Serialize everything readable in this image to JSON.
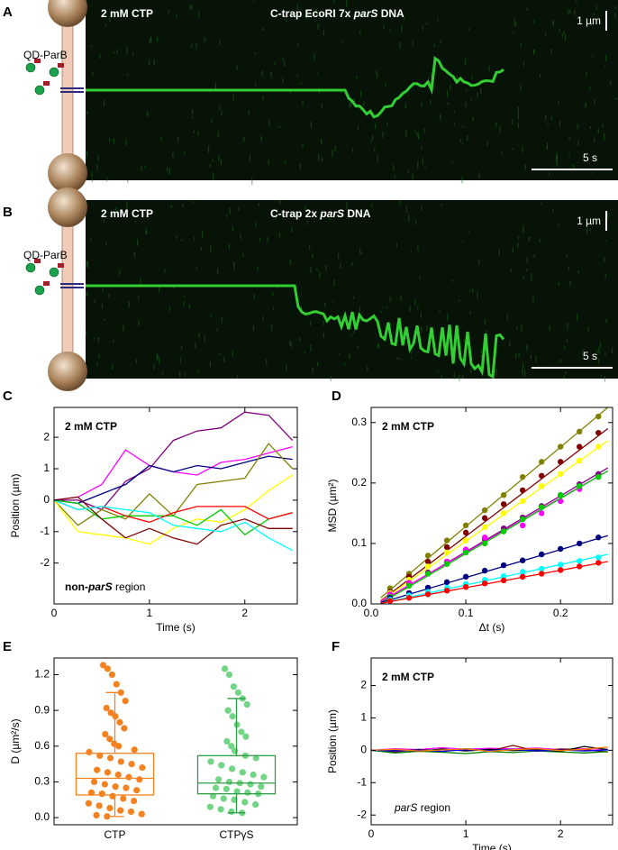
{
  "kymographs": [
    {
      "label": "A",
      "condition": "2 mM CTP",
      "title_parts": [
        {
          "text": "C-trap EcoRI 7x "
        },
        {
          "text": "parS",
          "italic": true
        },
        {
          "text": " DNA"
        }
      ],
      "scale_y": "1 µm",
      "scale_x": "5 s",
      "protein": "QD-ParB"
    },
    {
      "label": "B",
      "condition": "2 mM CTP",
      "title_parts": [
        {
          "text": "C-trap 2x "
        },
        {
          "text": "parS",
          "italic": true
        },
        {
          "text": " DNA"
        }
      ],
      "scale_y": "1 µm",
      "scale_x": "5 s",
      "protein": "QD-ParB"
    }
  ],
  "chart_data": [
    {
      "type": "line",
      "label": "C",
      "annotation": "2 mM CTP",
      "region_parts": [
        {
          "text": "non-",
          "bold": true
        },
        {
          "text": "parS",
          "bold": true,
          "italic": true
        },
        {
          "text": " region"
        }
      ],
      "xlabel": "Time (s)",
      "ylabel": "Position (µm)",
      "xlim": [
        0,
        2.55
      ],
      "ylim": [
        -3.3,
        2.95
      ],
      "xticks": [
        0,
        1,
        2
      ],
      "yticks": [
        -2,
        -1,
        0,
        1,
        2
      ],
      "x": [
        0,
        0.25,
        0.5,
        0.75,
        1,
        1.25,
        1.5,
        1.75,
        2,
        2.25,
        2.5
      ],
      "series": [
        {
          "color": "#ff00ff",
          "values": [
            0,
            0.1,
            0.5,
            1.6,
            1.1,
            0.9,
            0.8,
            1.2,
            1.3,
            1.5,
            1.7
          ]
        },
        {
          "color": "#800080",
          "values": [
            0,
            0,
            -0.3,
            0.6,
            1.0,
            1.9,
            2.2,
            2.3,
            2.8,
            2.7,
            1.9
          ]
        },
        {
          "color": "#000080",
          "values": [
            0,
            -0.1,
            0.2,
            0.5,
            1.1,
            0.9,
            1.1,
            1.0,
            1.2,
            1.4,
            1.3
          ]
        },
        {
          "color": "#808000",
          "values": [
            0,
            -0.8,
            -0.3,
            -0.6,
            0.2,
            -0.5,
            0.5,
            0.6,
            0.7,
            1.8,
            1.0
          ]
        },
        {
          "color": "#ffff00",
          "values": [
            0,
            -1.0,
            -1.1,
            -1.2,
            -1.4,
            -0.9,
            -0.6,
            -0.7,
            -0.3,
            0.3,
            0.8
          ]
        },
        {
          "color": "#00cc00",
          "values": [
            0,
            -0.1,
            -0.6,
            -0.5,
            -0.5,
            -0.5,
            -0.8,
            -0.3,
            -1.1,
            -0.6,
            -0.4
          ]
        },
        {
          "color": "#ff0000",
          "values": [
            0,
            -0.3,
            -0.2,
            -0.5,
            -0.7,
            -0.4,
            -0.2,
            -0.2,
            -0.2,
            -0.6,
            -0.4
          ]
        },
        {
          "color": "#800000",
          "values": [
            0,
            0.1,
            -0.6,
            -1.2,
            -0.9,
            -1.2,
            -1.4,
            -0.8,
            -0.6,
            -0.9,
            -0.9
          ]
        },
        {
          "color": "#00ffff",
          "values": [
            0,
            -0.3,
            -0.2,
            -0.3,
            -0.4,
            -0.8,
            -0.9,
            -1.0,
            -0.7,
            -1.2,
            -1.6
          ]
        }
      ]
    },
    {
      "type": "scatter",
      "label": "D",
      "annotation": "2 mM CTP",
      "xlabel": "Δt (s)",
      "ylabel": "MSD (µm²)",
      "xlim": [
        0,
        0.255
      ],
      "ylim": [
        0,
        0.325
      ],
      "xticks": [
        {
          "value": 0,
          "label": "0.0"
        },
        0.1,
        0.2
      ],
      "yticks": [
        {
          "value": 0,
          "label": "0.0"
        },
        0.1,
        0.2,
        0.3
      ],
      "x": [
        0.02,
        0.04,
        0.06,
        0.08,
        0.1,
        0.12,
        0.14,
        0.16,
        0.18,
        0.2,
        0.22,
        0.24
      ],
      "fit_x": [
        0.01,
        0.25
      ],
      "series": [
        {
          "color": "#808000",
          "values": [
            0.026,
            0.05,
            0.08,
            0.105,
            0.13,
            0.155,
            0.18,
            0.21,
            0.235,
            0.26,
            0.285,
            0.31
          ],
          "fit": [
            0.01,
            0.325
          ]
        },
        {
          "color": "#800000",
          "values": [
            0.02,
            0.045,
            0.07,
            0.094,
            0.118,
            0.142,
            0.165,
            0.188,
            0.212,
            0.235,
            0.26,
            0.283
          ],
          "fit": [
            0.005,
            0.29
          ]
        },
        {
          "color": "#ffff00",
          "values": [
            0.018,
            0.04,
            0.062,
            0.085,
            0.105,
            0.127,
            0.15,
            0.17,
            0.195,
            0.215,
            0.237,
            0.26
          ],
          "fit": [
            0.004,
            0.27
          ]
        },
        {
          "color": "#800080",
          "values": [
            0.015,
            0.033,
            0.052,
            0.07,
            0.088,
            0.107,
            0.125,
            0.143,
            0.162,
            0.18,
            0.198,
            0.215
          ],
          "fit": [
            0.003,
            0.225
          ]
        },
        {
          "color": "#ff00ff",
          "values": [
            0.016,
            0.035,
            0.05,
            0.07,
            0.09,
            0.11,
            0.12,
            0.13,
            0.15,
            0.17,
            0.19,
            0.21
          ],
          "fit": [
            0.004,
            0.22
          ]
        },
        {
          "color": "#00cc00",
          "values": [
            0.012,
            0.03,
            0.05,
            0.066,
            0.085,
            0.1,
            0.12,
            0.14,
            0.16,
            0.18,
            0.195,
            0.21
          ],
          "fit": [
            0.001,
            0.22
          ]
        },
        {
          "color": "#000080",
          "values": [
            0.01,
            0.018,
            0.027,
            0.036,
            0.045,
            0.055,
            0.064,
            0.072,
            0.082,
            0.091,
            0.1,
            0.11
          ],
          "fit": [
            0.002,
            0.113
          ]
        },
        {
          "color": "#00ffff",
          "values": [
            0.007,
            0.014,
            0.02,
            0.027,
            0.033,
            0.04,
            0.046,
            0.053,
            0.058,
            0.065,
            0.071,
            0.077
          ],
          "fit": [
            0.001,
            0.082
          ]
        },
        {
          "color": "#ff0000",
          "values": [
            0.005,
            0.01,
            0.016,
            0.022,
            0.028,
            0.034,
            0.039,
            0.045,
            0.05,
            0.056,
            0.062,
            0.068
          ],
          "fit": [
            0.001,
            0.07
          ]
        }
      ]
    },
    {
      "type": "box",
      "label": "E",
      "ylabel": "D (µm²/s)",
      "ylim": [
        -0.06,
        1.34
      ],
      "yticks": [
        {
          "value": 0,
          "label": "0.0"
        },
        0.3,
        0.6,
        0.9,
        1.2
      ],
      "groups": [
        {
          "name": "CTP",
          "color": "#f58220",
          "whisker_low": 0.01,
          "q1": 0.19,
          "median": 0.33,
          "q3": 0.54,
          "whisker_high": 1.05,
          "points": [
            1.28,
            1.25,
            1.2,
            1.12,
            1.05,
            0.98,
            0.92,
            0.88,
            0.85,
            0.8,
            0.75,
            0.7,
            0.66,
            0.62,
            0.6,
            0.57,
            0.55,
            0.52,
            0.5,
            0.47,
            0.45,
            0.42,
            0.4,
            0.38,
            0.36,
            0.34,
            0.32,
            0.3,
            0.28,
            0.26,
            0.25,
            0.23,
            0.21,
            0.2,
            0.18,
            0.16,
            0.14,
            0.12,
            0.1,
            0.08,
            0.06,
            0.05,
            0.03,
            0.02,
            0.01
          ]
        },
        {
          "name": "CTPγS",
          "color": "#2e9e44",
          "point_color": "#72d485",
          "whisker_low": 0.04,
          "q1": 0.2,
          "median": 0.29,
          "q3": 0.52,
          "whisker_high": 1.0,
          "points": [
            1.25,
            1.2,
            1.1,
            1.05,
            1.0,
            0.95,
            0.9,
            0.85,
            0.78,
            0.72,
            0.68,
            0.64,
            0.6,
            0.56,
            0.52,
            0.5,
            0.47,
            0.44,
            0.41,
            0.38,
            0.36,
            0.34,
            0.32,
            0.3,
            0.29,
            0.28,
            0.26,
            0.25,
            0.24,
            0.22,
            0.21,
            0.2,
            0.18,
            0.16,
            0.15,
            0.13,
            0.11,
            0.09,
            0.07,
            0.05,
            0.04
          ]
        }
      ]
    },
    {
      "type": "line",
      "label": "F",
      "annotation": "2 mM CTP",
      "region_parts": [
        {
          "text": "parS",
          "italic": true
        },
        {
          "text": " region"
        }
      ],
      "xlabel": "Time (s)",
      "ylabel": "Position (µm)",
      "xlim": [
        0,
        2.55
      ],
      "ylim": [
        -2.3,
        2.85
      ],
      "xticks": [
        0,
        1,
        2
      ],
      "yticks": [
        -2,
        -1,
        0,
        1,
        2
      ],
      "x": [
        0,
        0.25,
        0.5,
        0.75,
        1,
        1.25,
        1.5,
        1.75,
        2,
        2.25,
        2.5
      ],
      "series": [
        {
          "color": "#ff00ff",
          "values": [
            0,
            0.05,
            0.02,
            0.08,
            0.03,
            0.06,
            0.04,
            0.07,
            0.02,
            0.05,
            0.03
          ]
        },
        {
          "color": "#800000",
          "values": [
            0,
            -0.05,
            0.03,
            -0.04,
            0.05,
            -0.02,
            0.15,
            -0.03,
            0.04,
            0.02,
            -0.05
          ]
        },
        {
          "color": "#008000",
          "values": [
            0,
            -0.08,
            -0.03,
            -0.06,
            -0.1,
            -0.04,
            -0.07,
            -0.02,
            -0.05,
            -0.08,
            -0.04
          ]
        },
        {
          "color": "#000000",
          "values": [
            0,
            0.02,
            -0.03,
            0.04,
            -0.02,
            0.03,
            -0.01,
            0.02,
            -0.03,
            0.12,
            0.02
          ]
        },
        {
          "color": "#0000ff",
          "values": [
            0,
            -0.02,
            0.01,
            -0.03,
            0.02,
            -0.01,
            0.03,
            -0.02,
            0.01,
            -0.02,
            0.01
          ]
        },
        {
          "color": "#ff8000",
          "values": [
            0,
            0.03,
            -0.02,
            0.01,
            0.04,
            -0.03,
            0.02,
            0.05,
            -0.01,
            0.03,
            0.1
          ]
        }
      ]
    }
  ]
}
